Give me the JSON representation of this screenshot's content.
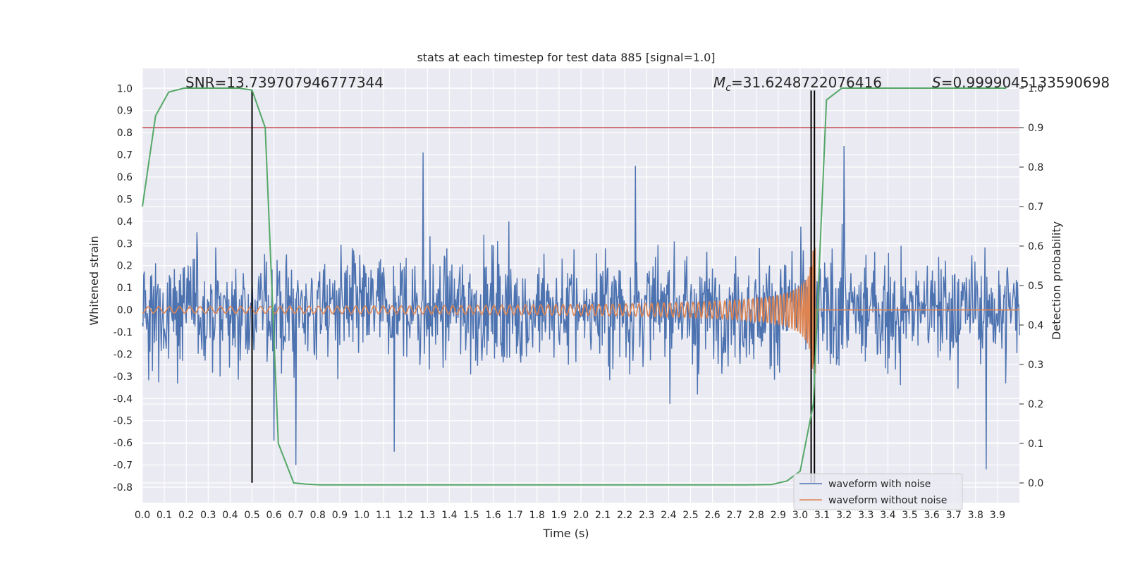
{
  "chart_data": {
    "type": "line",
    "title": "stats at each timestep for test data 885 [signal=1.0]",
    "xlabel": "Time (s)",
    "ylabel": "Whitened strain",
    "ylabel_right": "Detection probability",
    "xlim": [
      0.0,
      4.0
    ],
    "ylim": [
      -0.87,
      1.09
    ],
    "ylim_right": [
      -0.05,
      1.05
    ],
    "x_ticks": [
      "0.0",
      "0.1",
      "0.2",
      "0.3",
      "0.4",
      "0.5",
      "0.6",
      "0.7",
      "0.8",
      "0.9",
      "1.0",
      "1.1",
      "1.2",
      "1.3",
      "1.4",
      "1.5",
      "1.6",
      "1.7",
      "1.8",
      "1.9",
      "2.0",
      "2.1",
      "2.2",
      "2.3",
      "2.4",
      "2.5",
      "2.6",
      "2.7",
      "2.8",
      "2.9",
      "3.0",
      "3.1",
      "3.2",
      "3.3",
      "3.4",
      "3.5",
      "3.6",
      "3.7",
      "3.8",
      "3.9"
    ],
    "y_ticks": [
      "1.0",
      "0.9",
      "0.8",
      "0.7",
      "0.6",
      "0.5",
      "0.4",
      "0.3",
      "0.2",
      "0.1",
      "0.0",
      "-0.1",
      "-0.2",
      "-0.3",
      "-0.4",
      "-0.5",
      "-0.6",
      "-0.7",
      "-0.8"
    ],
    "y_ticks_right": [
      "1.0",
      "0.9",
      "0.8",
      "0.7",
      "0.6",
      "0.5",
      "0.4",
      "0.3",
      "0.2",
      "0.1",
      "0.0"
    ],
    "grid": true,
    "annotations": {
      "snr": "SNR=13.739707946777344",
      "mc_symbol": "M",
      "mc_sub": "c",
      "mc_value": "=31.6248722076416",
      "s_symbol": "S",
      "s_value": "=0.9999045133590698"
    },
    "legend": {
      "placement": "lower-right",
      "entries": [
        {
          "label": "waveform with noise",
          "color": "#4c72b0"
        },
        {
          "label": "waveform without noise",
          "color": "#dd8452"
        }
      ]
    },
    "noisy_waveform": {
      "name": "waveform with noise",
      "color": "#4c72b0",
      "x_range": [
        0.0,
        4.0
      ],
      "typical_envelope": [
        -0.5,
        0.45
      ],
      "peaks": [
        {
          "x": 1.28,
          "y": 0.71
        },
        {
          "x": 3.2,
          "y": 0.74
        },
        {
          "x": 2.25,
          "y": 0.65
        },
        {
          "x": 0.7,
          "y": -0.7
        },
        {
          "x": 3.85,
          "y": -0.72
        },
        {
          "x": 0.6,
          "y": -0.59
        },
        {
          "x": 1.15,
          "y": -0.64
        }
      ]
    },
    "clean_waveform": {
      "name": "waveform without noise",
      "color": "#dd8452",
      "merger_time": 3.07,
      "peak_amplitude": 0.53,
      "early_amplitude": 0.015
    },
    "detection_probability": {
      "color": "#55a868",
      "axis": "right",
      "x": [
        0.0,
        0.06,
        0.12,
        0.19,
        0.25,
        0.31,
        0.37,
        0.44,
        0.5,
        0.56,
        0.62,
        0.69,
        0.75,
        0.81,
        0.87,
        0.94,
        1.0,
        1.25,
        1.5,
        1.75,
        2.0,
        2.25,
        2.5,
        2.75,
        2.87,
        2.94,
        3.0,
        3.06,
        3.12,
        3.19,
        3.25,
        3.5,
        3.75,
        3.94
      ],
      "y": [
        0.7,
        0.93,
        0.99,
        1.0,
        1.0,
        1.0,
        1.0,
        1.0,
        0.995,
        0.9,
        0.1,
        0.0,
        -0.003,
        -0.005,
        -0.005,
        -0.005,
        -0.005,
        -0.005,
        -0.005,
        -0.005,
        -0.005,
        -0.005,
        -0.005,
        -0.005,
        -0.004,
        0.005,
        0.03,
        0.2,
        0.97,
        1.0,
        1.0,
        1.0,
        1.0,
        1.0
      ]
    },
    "threshold_line": {
      "y_right": 0.9,
      "color": "#c44e52"
    },
    "vertical_markers": [
      {
        "x": 0.5,
        "color": "#000000"
      },
      {
        "x": 3.05,
        "color": "#000000"
      },
      {
        "x": 3.065,
        "color": "#000000"
      }
    ]
  }
}
